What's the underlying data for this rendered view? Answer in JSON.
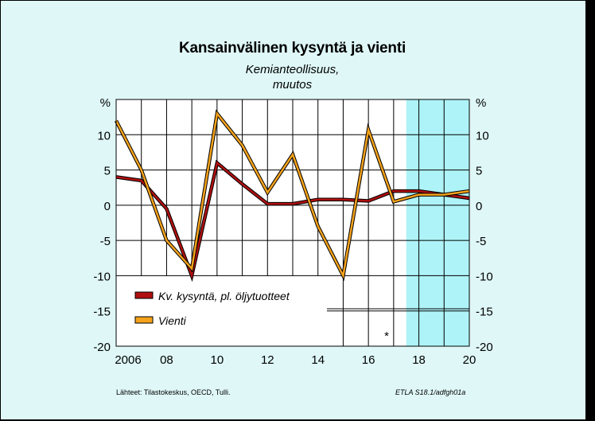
{
  "header": {
    "title": "Kansainvälinen kysyntä ja vienti",
    "subtitle_line1": "Kemianteollisuus,",
    "subtitle_line2": "muutos"
  },
  "footer": {
    "source": "Lähteet:   Tilastokeskus, OECD, Tulli.",
    "code": "ETLA S18.1/adfgh01a"
  },
  "chart_data": {
    "type": "line",
    "title": "Kansainvälinen kysyntä ja vienti",
    "subtitle": "Kemianteollisuus, muutos",
    "ylabel_left": "%",
    "ylabel_right": "%",
    "x": [
      2006,
      2007,
      2008,
      2009,
      2010,
      2011,
      2012,
      2013,
      2014,
      2015,
      2016,
      2017,
      2018,
      2019,
      2020
    ],
    "xlim": [
      2006,
      2020
    ],
    "ylim": [
      -20,
      15
    ],
    "x_ticks": [
      2006,
      2008,
      2010,
      2012,
      2014,
      2016,
      2018,
      2020
    ],
    "x_tick_labels": [
      "2006",
      "08",
      "10",
      "12",
      "14",
      "16",
      "18",
      "20"
    ],
    "y_ticks": [
      -20,
      -15,
      -10,
      -5,
      0,
      5,
      10
    ],
    "y_tick_labels": [
      "-20",
      "-15",
      "-10",
      "-5",
      "0",
      "5",
      "10"
    ],
    "forecast_start": 2017.5,
    "forecast_color": "#aef3f7",
    "grid": true,
    "legend_position": "bottom-left",
    "annotation": "*",
    "series": [
      {
        "name": "Kv. kysyntä, pl. öljytuotteet",
        "color": "#b01010",
        "values": [
          4.0,
          3.5,
          -0.5,
          -10.0,
          6.0,
          3.0,
          0.2,
          0.2,
          0.8,
          0.8,
          0.6,
          2.0,
          2.0,
          1.5,
          1.0
        ]
      },
      {
        "name": "Vienti",
        "color": "#f5a21b",
        "values": [
          12.0,
          5.0,
          -5.0,
          -9.0,
          13.0,
          8.5,
          1.8,
          7.2,
          -3.0,
          -10.0,
          10.7,
          0.5,
          1.5,
          1.5,
          2.0
        ]
      }
    ]
  }
}
